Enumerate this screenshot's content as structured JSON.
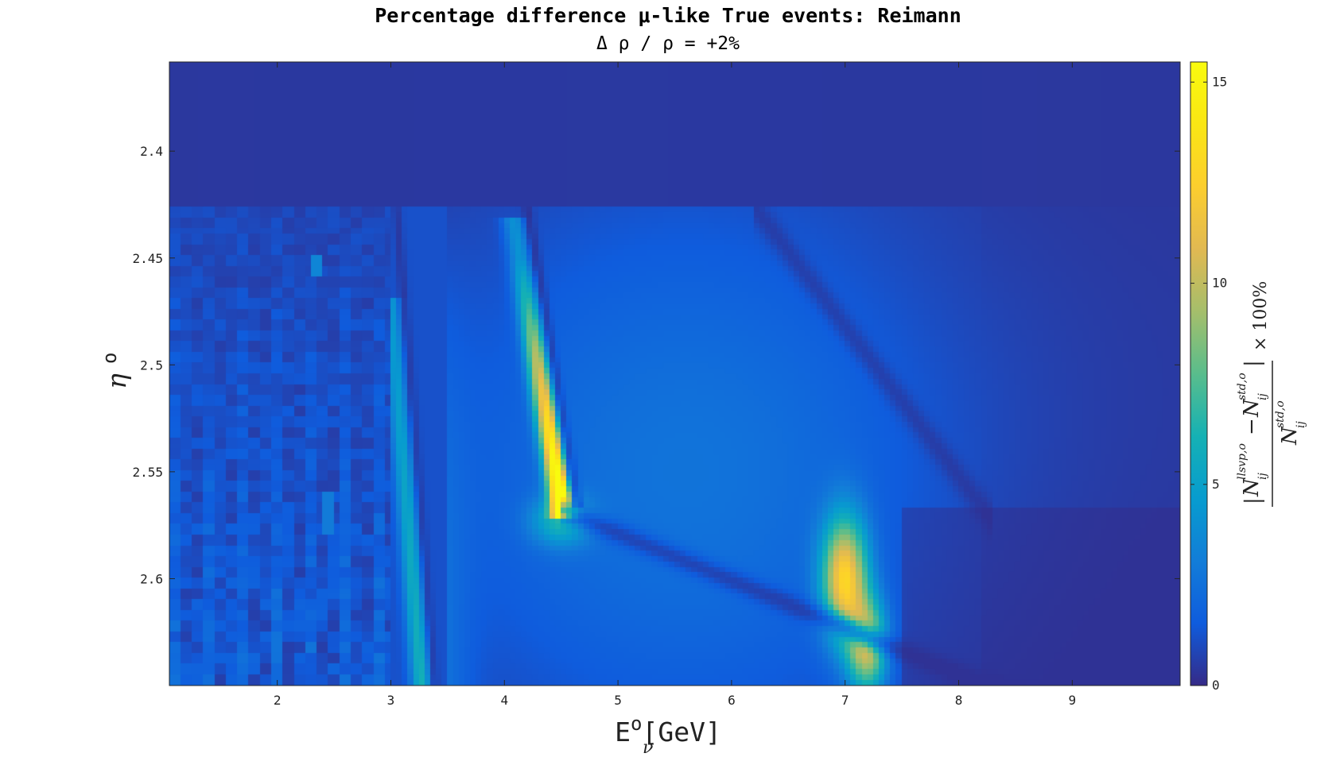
{
  "chart_data": {
    "type": "heatmap",
    "title": "Percentage difference μ-like True events: Reimann",
    "subtitle": "Δ ρ / ρ = +2%",
    "xlabel": "E",
    "xlabel_super": "o",
    "xlabel_sub": "ν",
    "xlabel_unit": "[GeV]",
    "ylabel": "η",
    "ylabel_super": "o",
    "xlim": [
      1.05,
      9.95
    ],
    "ylim": [
      2.3583,
      2.65
    ],
    "x_ticks": [
      2,
      3,
      4,
      5,
      6,
      7,
      8,
      9
    ],
    "y_ticks": [
      2.4,
      2.45,
      2.5,
      2.55,
      2.6
    ],
    "y_tick_labels": [
      "2.4",
      "2.45",
      "2.5",
      "2.55",
      "2.6"
    ],
    "y_reversed": true,
    "colorbar": {
      "range": [
        0,
        15.5
      ],
      "ticks": [
        0,
        5,
        10,
        15
      ],
      "label": "|N_ij^{llsvp,o} − N_ij^{std,o}| / N_ij^{std,o} × 100%",
      "colormap": "parula"
    },
    "features": [
      {
        "kind": "ridge",
        "x": [
          4.0,
          4.5
        ],
        "y": [
          2.425,
          2.568
        ],
        "peak": 15.0
      },
      {
        "kind": "blob",
        "x": 7.0,
        "y": 2.6,
        "peak": 11.0
      },
      {
        "kind": "blob",
        "x": 7.2,
        "y": 2.632,
        "peak": 9.0
      },
      {
        "kind": "band",
        "x": [
          3.0,
          3.3
        ],
        "y": [
          2.47,
          2.65
        ],
        "peak": 5.5
      },
      {
        "kind": "stripes",
        "x": [
          1.05,
          3.0
        ],
        "y": [
          2.425,
          2.65
        ],
        "peak": 3.5
      }
    ]
  }
}
